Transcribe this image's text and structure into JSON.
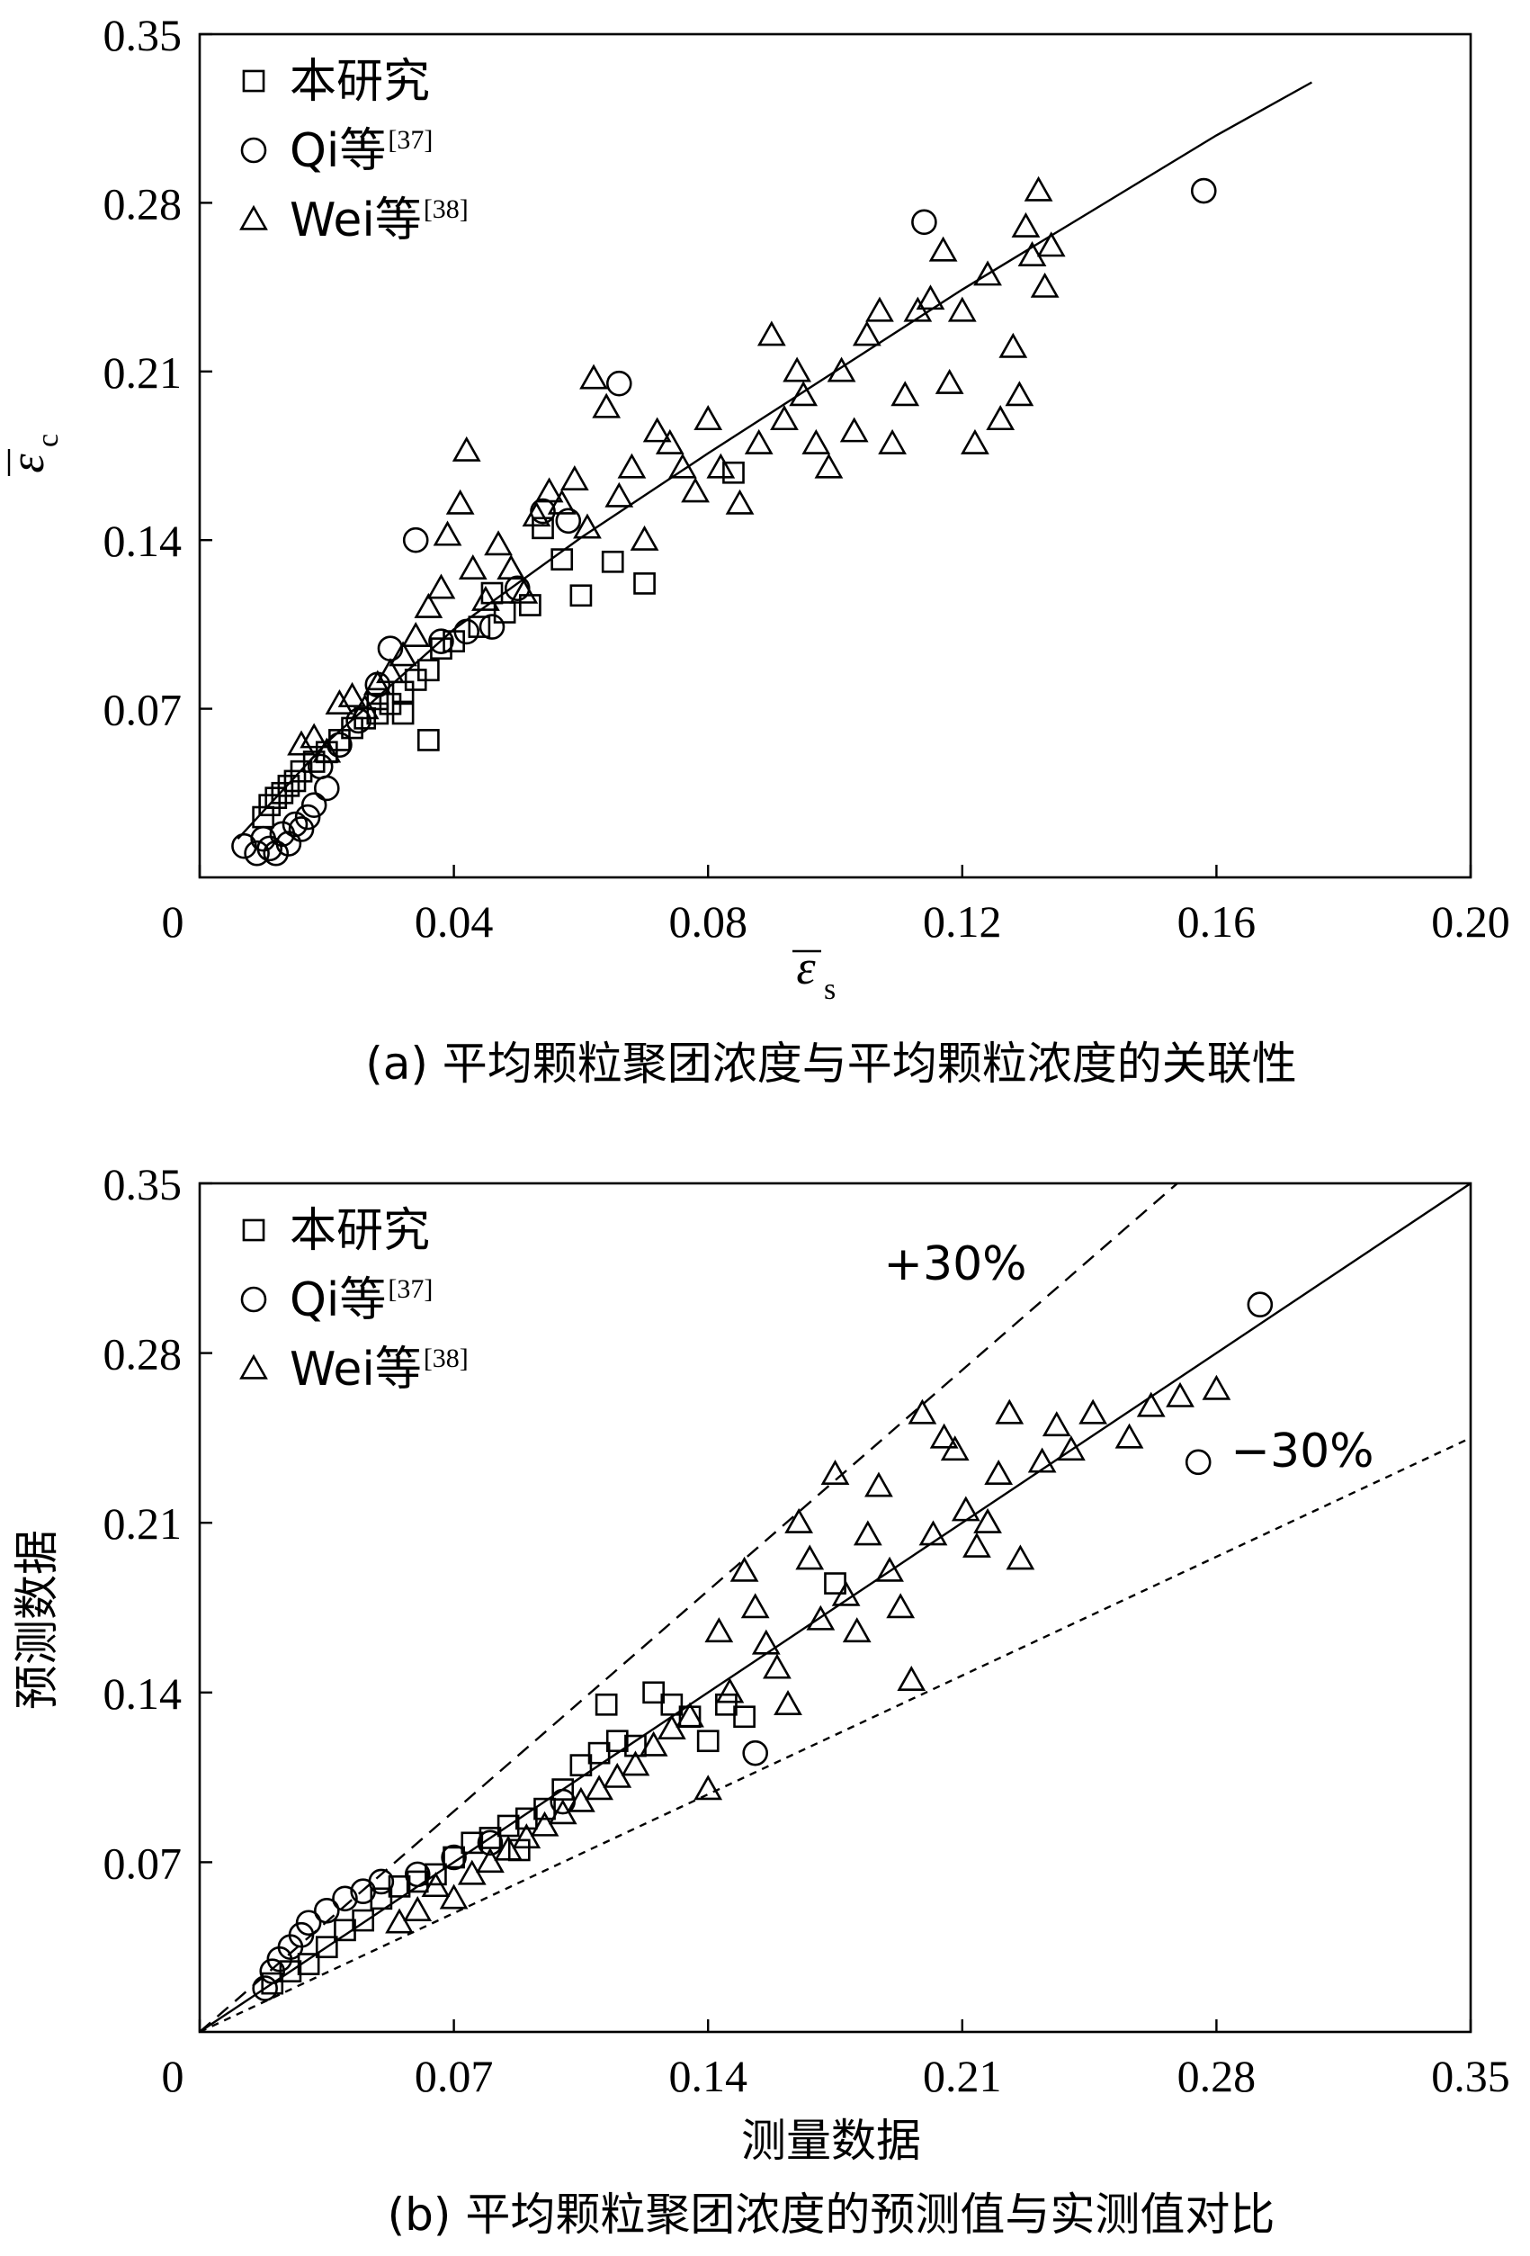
{
  "chart_data": [
    {
      "type": "scatter",
      "panel": "a",
      "caption": "(a) 平均颗粒聚团浓度与平均颗粒浓度的关联性",
      "xlabel_symbol": "ε",
      "xlabel_sub": "s",
      "ylabel_symbol": "ε",
      "ylabel_sub": "c",
      "xlim": [
        0,
        0.2
      ],
      "ylim": [
        0,
        0.35
      ],
      "xticks": [
        "0",
        "0.04",
        "0.08",
        "0.12",
        "0.16",
        "0.20"
      ],
      "yticks": [
        "0.07",
        "0.14",
        "0.21",
        "0.28",
        "0.35"
      ],
      "legend": [
        {
          "marker": "square",
          "label": "本研究",
          "ref": ""
        },
        {
          "marker": "circle",
          "label": "Qi等",
          "ref": "[37]"
        },
        {
          "marker": "triangle",
          "label": "Wei等",
          "ref": "[38]"
        }
      ],
      "fit_line": [
        [
          0.006,
          0.016
        ],
        [
          0.02,
          0.056
        ],
        [
          0.04,
          0.103
        ],
        [
          0.06,
          0.141
        ],
        [
          0.08,
          0.176
        ],
        [
          0.1,
          0.21
        ],
        [
          0.12,
          0.244
        ],
        [
          0.14,
          0.276
        ],
        [
          0.16,
          0.308
        ],
        [
          0.175,
          0.33
        ]
      ],
      "series": [
        {
          "marker": "square",
          "points": [
            [
              0.01,
              0.025
            ],
            [
              0.011,
              0.03
            ],
            [
              0.012,
              0.033
            ],
            [
              0.013,
              0.035
            ],
            [
              0.014,
              0.038
            ],
            [
              0.015,
              0.04
            ],
            [
              0.016,
              0.044
            ],
            [
              0.018,
              0.048
            ],
            [
              0.02,
              0.052
            ],
            [
              0.022,
              0.057
            ],
            [
              0.024,
              0.062
            ],
            [
              0.026,
              0.066
            ],
            [
              0.028,
              0.068
            ],
            [
              0.03,
              0.072
            ],
            [
              0.032,
              0.077
            ],
            [
              0.034,
              0.082
            ],
            [
              0.036,
              0.086
            ],
            [
              0.036,
              0.057
            ],
            [
              0.038,
              0.095
            ],
            [
              0.04,
              0.098
            ],
            [
              0.044,
              0.104
            ],
            [
              0.048,
              0.11
            ],
            [
              0.052,
              0.113
            ],
            [
              0.054,
              0.145
            ],
            [
              0.057,
              0.132
            ],
            [
              0.06,
              0.117
            ],
            [
              0.065,
              0.131
            ],
            [
              0.07,
              0.122
            ],
            [
              0.084,
              0.168
            ],
            [
              0.032,
              0.068
            ],
            [
              0.028,
              0.074
            ],
            [
              0.046,
              0.118
            ]
          ]
        },
        {
          "marker": "circle",
          "points": [
            [
              0.007,
              0.013
            ],
            [
              0.009,
              0.01
            ],
            [
              0.01,
              0.016
            ],
            [
              0.011,
              0.012
            ],
            [
              0.012,
              0.01
            ],
            [
              0.013,
              0.018
            ],
            [
              0.014,
              0.014
            ],
            [
              0.015,
              0.022
            ],
            [
              0.016,
              0.02
            ],
            [
              0.017,
              0.025
            ],
            [
              0.018,
              0.03
            ],
            [
              0.02,
              0.037
            ],
            [
              0.019,
              0.046
            ],
            [
              0.022,
              0.055
            ],
            [
              0.025,
              0.065
            ],
            [
              0.028,
              0.08
            ],
            [
              0.03,
              0.095
            ],
            [
              0.034,
              0.14
            ],
            [
              0.038,
              0.098
            ],
            [
              0.042,
              0.102
            ],
            [
              0.046,
              0.104
            ],
            [
              0.05,
              0.12
            ],
            [
              0.054,
              0.152
            ],
            [
              0.058,
              0.148
            ],
            [
              0.066,
              0.205
            ],
            [
              0.114,
              0.272
            ],
            [
              0.158,
              0.285
            ]
          ]
        },
        {
          "marker": "triangle",
          "points": [
            [
              0.016,
              0.055
            ],
            [
              0.018,
              0.058
            ],
            [
              0.02,
              0.052
            ],
            [
              0.022,
              0.072
            ],
            [
              0.024,
              0.075
            ],
            [
              0.026,
              0.07
            ],
            [
              0.028,
              0.08
            ],
            [
              0.03,
              0.085
            ],
            [
              0.032,
              0.092
            ],
            [
              0.034,
              0.1
            ],
            [
              0.036,
              0.112
            ],
            [
              0.038,
              0.12
            ],
            [
              0.039,
              0.142
            ],
            [
              0.041,
              0.155
            ],
            [
              0.042,
              0.177
            ],
            [
              0.043,
              0.128
            ],
            [
              0.045,
              0.115
            ],
            [
              0.047,
              0.138
            ],
            [
              0.049,
              0.128
            ],
            [
              0.051,
              0.118
            ],
            [
              0.053,
              0.15
            ],
            [
              0.055,
              0.16
            ],
            [
              0.057,
              0.155
            ],
            [
              0.059,
              0.165
            ],
            [
              0.061,
              0.145
            ],
            [
              0.062,
              0.207
            ],
            [
              0.064,
              0.195
            ],
            [
              0.066,
              0.158
            ],
            [
              0.068,
              0.17
            ],
            [
              0.07,
              0.14
            ],
            [
              0.072,
              0.185
            ],
            [
              0.074,
              0.18
            ],
            [
              0.076,
              0.17
            ],
            [
              0.078,
              0.16
            ],
            [
              0.08,
              0.19
            ],
            [
              0.082,
              0.17
            ],
            [
              0.085,
              0.155
            ],
            [
              0.088,
              0.18
            ],
            [
              0.09,
              0.225
            ],
            [
              0.092,
              0.19
            ],
            [
              0.094,
              0.21
            ],
            [
              0.095,
              0.2
            ],
            [
              0.097,
              0.18
            ],
            [
              0.099,
              0.17
            ],
            [
              0.101,
              0.21
            ],
            [
              0.103,
              0.185
            ],
            [
              0.105,
              0.225
            ],
            [
              0.107,
              0.235
            ],
            [
              0.109,
              0.18
            ],
            [
              0.111,
              0.2
            ],
            [
              0.113,
              0.235
            ],
            [
              0.115,
              0.24
            ],
            [
              0.117,
              0.26
            ],
            [
              0.118,
              0.205
            ],
            [
              0.12,
              0.235
            ],
            [
              0.122,
              0.18
            ],
            [
              0.124,
              0.25
            ],
            [
              0.126,
              0.19
            ],
            [
              0.128,
              0.22
            ],
            [
              0.129,
              0.2
            ],
            [
              0.13,
              0.27
            ],
            [
              0.131,
              0.258
            ],
            [
              0.132,
              0.285
            ],
            [
              0.133,
              0.245
            ],
            [
              0.134,
              0.262
            ]
          ]
        }
      ]
    },
    {
      "type": "scatter",
      "panel": "b",
      "caption": "(b) 平均颗粒聚团浓度的预测值与实测值对比",
      "xlabel": "测量数据",
      "ylabel": "预测数据",
      "xlim": [
        0,
        0.35
      ],
      "ylim": [
        0,
        0.35
      ],
      "xticks": [
        "0",
        "0.07",
        "0.14",
        "0.21",
        "0.28",
        "0.35"
      ],
      "yticks": [
        "0.07",
        "0.14",
        "0.21",
        "0.28",
        "0.35"
      ],
      "legend": [
        {
          "marker": "square",
          "label": "本研究",
          "ref": ""
        },
        {
          "marker": "circle",
          "label": "Qi等",
          "ref": "[37]"
        },
        {
          "marker": "triangle",
          "label": "Wei等",
          "ref": "[38]"
        }
      ],
      "lines": [
        {
          "style": "solid",
          "slope": 1.0
        },
        {
          "style": "dashed",
          "slope": 1.3,
          "label": "+30%"
        },
        {
          "style": "dotted",
          "slope": 0.7,
          "label": "−30%"
        }
      ],
      "series": [
        {
          "marker": "square",
          "points": [
            [
              0.02,
              0.02
            ],
            [
              0.025,
              0.025
            ],
            [
              0.03,
              0.028
            ],
            [
              0.035,
              0.035
            ],
            [
              0.04,
              0.042
            ],
            [
              0.045,
              0.046
            ],
            [
              0.05,
              0.055
            ],
            [
              0.055,
              0.06
            ],
            [
              0.06,
              0.062
            ],
            [
              0.065,
              0.065
            ],
            [
              0.07,
              0.072
            ],
            [
              0.075,
              0.078
            ],
            [
              0.08,
              0.08
            ],
            [
              0.085,
              0.085
            ],
            [
              0.09,
              0.088
            ],
            [
              0.095,
              0.092
            ],
            [
              0.1,
              0.1
            ],
            [
              0.105,
              0.11
            ],
            [
              0.11,
              0.115
            ],
            [
              0.115,
              0.12
            ],
            [
              0.12,
              0.118
            ],
            [
              0.125,
              0.14
            ],
            [
              0.13,
              0.135
            ],
            [
              0.135,
              0.13
            ],
            [
              0.14,
              0.12
            ],
            [
              0.145,
              0.135
            ],
            [
              0.15,
              0.13
            ],
            [
              0.175,
              0.185
            ],
            [
              0.112,
              0.135
            ],
            [
              0.088,
              0.075
            ]
          ]
        },
        {
          "marker": "circle",
          "points": [
            [
              0.018,
              0.018
            ],
            [
              0.02,
              0.025
            ],
            [
              0.022,
              0.03
            ],
            [
              0.025,
              0.035
            ],
            [
              0.028,
              0.04
            ],
            [
              0.03,
              0.045
            ],
            [
              0.035,
              0.05
            ],
            [
              0.04,
              0.055
            ],
            [
              0.045,
              0.058
            ],
            [
              0.05,
              0.062
            ],
            [
              0.06,
              0.065
            ],
            [
              0.07,
              0.072
            ],
            [
              0.08,
              0.078
            ],
            [
              0.1,
              0.095
            ],
            [
              0.153,
              0.115
            ],
            [
              0.275,
              0.235
            ],
            [
              0.292,
              0.3
            ]
          ]
        },
        {
          "marker": "triangle",
          "points": [
            [
              0.055,
              0.045
            ],
            [
              0.06,
              0.05
            ],
            [
              0.065,
              0.06
            ],
            [
              0.07,
              0.055
            ],
            [
              0.075,
              0.065
            ],
            [
              0.08,
              0.07
            ],
            [
              0.085,
              0.075
            ],
            [
              0.09,
              0.08
            ],
            [
              0.095,
              0.085
            ],
            [
              0.1,
              0.09
            ],
            [
              0.105,
              0.095
            ],
            [
              0.11,
              0.1
            ],
            [
              0.115,
              0.105
            ],
            [
              0.12,
              0.11
            ],
            [
              0.125,
              0.118
            ],
            [
              0.13,
              0.125
            ],
            [
              0.135,
              0.13
            ],
            [
              0.14,
              0.1
            ],
            [
              0.143,
              0.165
            ],
            [
              0.146,
              0.14
            ],
            [
              0.15,
              0.19
            ],
            [
              0.153,
              0.175
            ],
            [
              0.156,
              0.16
            ],
            [
              0.159,
              0.15
            ],
            [
              0.162,
              0.135
            ],
            [
              0.165,
              0.21
            ],
            [
              0.168,
              0.195
            ],
            [
              0.171,
              0.17
            ],
            [
              0.175,
              0.23
            ],
            [
              0.178,
              0.18
            ],
            [
              0.181,
              0.165
            ],
            [
              0.184,
              0.205
            ],
            [
              0.187,
              0.225
            ],
            [
              0.19,
              0.19
            ],
            [
              0.193,
              0.175
            ],
            [
              0.196,
              0.145
            ],
            [
              0.199,
              0.255
            ],
            [
              0.202,
              0.205
            ],
            [
              0.205,
              0.245
            ],
            [
              0.208,
              0.24
            ],
            [
              0.211,
              0.215
            ],
            [
              0.214,
              0.2
            ],
            [
              0.217,
              0.21
            ],
            [
              0.22,
              0.23
            ],
            [
              0.223,
              0.255
            ],
            [
              0.226,
              0.195
            ],
            [
              0.232,
              0.235
            ],
            [
              0.236,
              0.25
            ],
            [
              0.24,
              0.24
            ],
            [
              0.246,
              0.255
            ],
            [
              0.256,
              0.245
            ],
            [
              0.262,
              0.258
            ],
            [
              0.27,
              0.262
            ],
            [
              0.28,
              0.265
            ]
          ]
        }
      ]
    }
  ]
}
